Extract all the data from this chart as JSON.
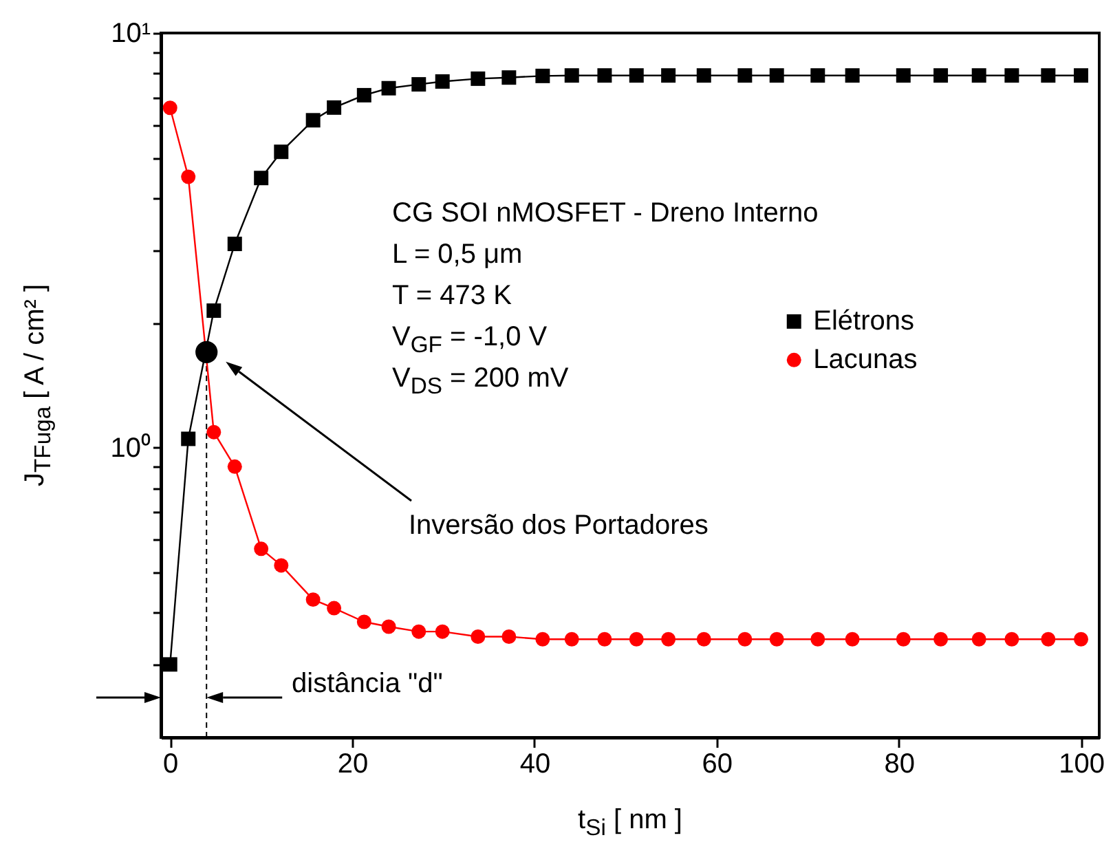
{
  "chart_data": {
    "type": "line",
    "xlabel": "t$_{Si}$ [ nm ]",
    "ylabel": "J$_{TFuga}$ [ A / cm² ]",
    "x": [
      0,
      2,
      4.8,
      7.1,
      10,
      12.2,
      15.7,
      18,
      21.3,
      24,
      27.3,
      29.9,
      33.8,
      37.2,
      40.9,
      44.1,
      47.7,
      51.2,
      54.7,
      58.6,
      63.1,
      66.6,
      71.1,
      74.9,
      80.5,
      84.6,
      88.8,
      92.4,
      96.4,
      100
    ],
    "series": [
      {
        "name": "Elétrons",
        "color": "#000000",
        "marker": "square",
        "values": [
          0.3,
          1.05,
          2.14,
          3.1,
          4.47,
          5.17,
          6.16,
          6.61,
          7.08,
          7.36,
          7.52,
          7.64,
          7.76,
          7.81,
          7.88,
          7.9,
          7.9,
          7.9,
          7.9,
          7.9,
          7.9,
          7.9,
          7.9,
          7.9,
          7.9,
          7.9,
          7.9,
          7.9,
          7.9,
          7.9
        ]
      },
      {
        "name": "Lacunas",
        "color": "#ff0000",
        "marker": "circle",
        "values": [
          6.6,
          4.5,
          1.09,
          0.9,
          0.57,
          0.52,
          0.43,
          0.41,
          0.38,
          0.37,
          0.36,
          0.36,
          0.35,
          0.35,
          0.345,
          0.345,
          0.345,
          0.345,
          0.345,
          0.345,
          0.345,
          0.345,
          0.345,
          0.345,
          0.345,
          0.345,
          0.345,
          0.345,
          0.345,
          0.345
        ]
      },
      {
        "type": "scatter",
        "color": "#000000",
        "marker": "circle",
        "x": [
          4
        ],
        "values": [
          1.7
        ]
      }
    ],
    "log": "y",
    "xlim": [
      -1,
      102
    ],
    "ylim": [
      0.2,
      10
    ],
    "xticks": [
      0,
      20,
      40,
      60,
      80,
      100
    ],
    "yticks": [
      {
        "value": 0.3,
        "label": null
      },
      {
        "value": 0.4,
        "label": null
      },
      {
        "value": 0.5,
        "label": null
      },
      {
        "value": 0.6,
        "label": null
      },
      {
        "value": 0.7,
        "label": null
      },
      {
        "value": 0.8,
        "label": null
      },
      {
        "value": 0.9,
        "label": null
      },
      {
        "value": 1,
        "label": "10⁰"
      },
      {
        "value": 2,
        "label": null
      },
      {
        "value": 3,
        "label": null
      },
      {
        "value": 4,
        "label": null
      },
      {
        "value": 5,
        "label": null
      },
      {
        "value": 6,
        "label": null
      },
      {
        "value": 7,
        "label": null
      },
      {
        "value": 8,
        "label": null
      },
      {
        "value": 9,
        "label": null
      },
      {
        "value": 10,
        "label": "10¹"
      }
    ],
    "grid": false,
    "legend": "right",
    "ref_lines": [
      {
        "axis": "x",
        "value": 4,
        "line_style": "dashed",
        "color": "#000000"
      }
    ],
    "annotations": [
      "CG SOI nMOSFET - Dreno Interno",
      "L = 0,5 μm",
      "T = 473 K",
      "V$_{GF}$ = -1,0 V",
      "V$_{DS}$ = 200 mV",
      "Inversão dos Portadores",
      "distância \"d\""
    ]
  }
}
